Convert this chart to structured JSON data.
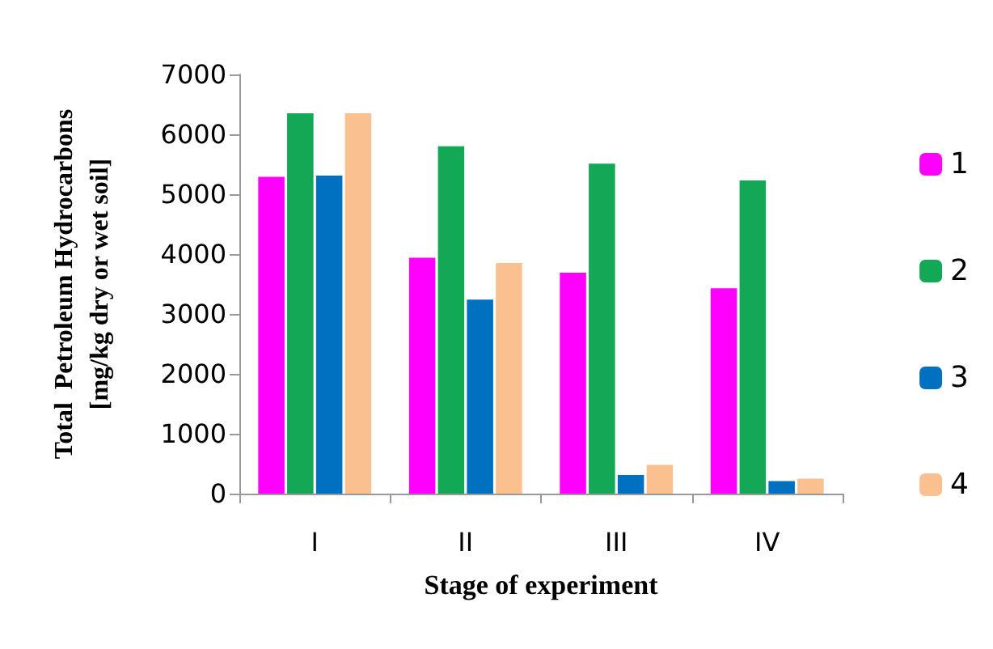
{
  "chart_data": {
    "type": "bar",
    "xlabel": "Stage of experiment",
    "ylabel": "Total  Petroleum Hydrocarbons\n[mg/kg dry or wet soil]",
    "categories": [
      "I",
      "II",
      "III",
      "IV"
    ],
    "series": [
      {
        "name": "1",
        "color": "#ff00ff",
        "values": [
          5290,
          3940,
          3690,
          3430
        ]
      },
      {
        "name": "2",
        "color": "#13a855",
        "values": [
          6350,
          5800,
          5510,
          5230
        ]
      },
      {
        "name": "3",
        "color": "#0070c0",
        "values": [
          5310,
          3240,
          310,
          210
        ]
      },
      {
        "name": "4",
        "color": "#fac090",
        "values": [
          6350,
          3850,
          480,
          250
        ]
      }
    ],
    "ylim": [
      0,
      7000
    ],
    "yticks": [
      0,
      1000,
      2000,
      3000,
      4000,
      5000,
      6000,
      7000
    ],
    "grid": false,
    "legend": "right"
  }
}
